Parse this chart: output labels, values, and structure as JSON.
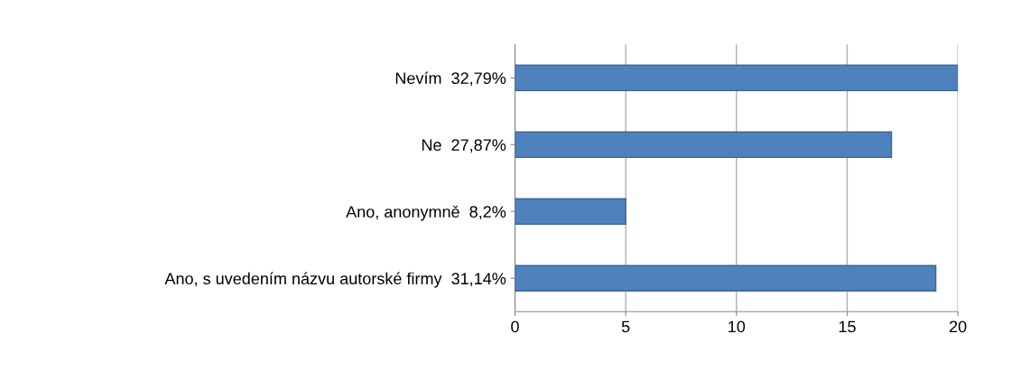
{
  "chart_data": {
    "type": "bar",
    "orientation": "horizontal",
    "categories": [
      "Nevím  32,79%",
      "Ne  27,87%",
      "Ano, anonymně  8,2%",
      "Ano, s uvedením názvu autorské firmy  31,14%"
    ],
    "values": [
      20,
      17,
      5,
      19
    ],
    "color": "#4f81bd",
    "xlim": [
      0,
      20
    ],
    "xticks": [
      0,
      5,
      10,
      15,
      20
    ],
    "grid": "x",
    "legend": false
  }
}
